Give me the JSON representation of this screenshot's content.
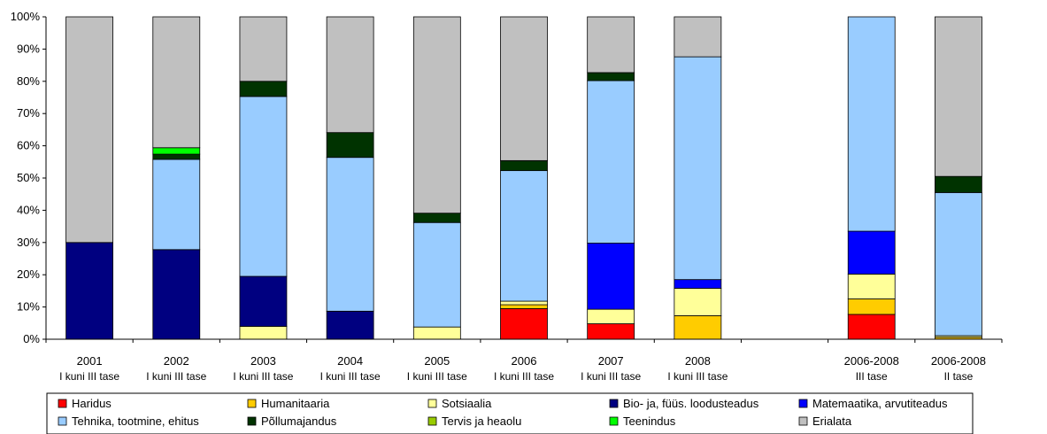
{
  "chart_data": {
    "type": "bar",
    "stacked": true,
    "percent": true,
    "ylim": [
      0,
      100
    ],
    "yticks": [
      "0%",
      "10%",
      "20%",
      "30%",
      "40%",
      "50%",
      "60%",
      "70%",
      "80%",
      "90%",
      "100%"
    ],
    "grid": false,
    "legend_position": "bottom",
    "categories": [
      {
        "line1": "2001",
        "line2": "I kuni III tase"
      },
      {
        "line1": "2002",
        "line2": "I kuni III tase"
      },
      {
        "line1": "2003",
        "line2": "I kuni III tase"
      },
      {
        "line1": "2004",
        "line2": "I kuni III tase"
      },
      {
        "line1": "2005",
        "line2": "I kuni III tase"
      },
      {
        "line1": "2006",
        "line2": "I kuni III tase"
      },
      {
        "line1": "2007",
        "line2": "I kuni III tase"
      },
      {
        "line1": "2008",
        "line2": "I kuni III tase"
      },
      {
        "line1": "",
        "line2": ""
      },
      {
        "line1": "2006-2008",
        "line2": "III tase"
      },
      {
        "line1": "2006-2008",
        "line2": "II tase"
      }
    ],
    "series": [
      {
        "name": "Haridus",
        "color": "#ff0000",
        "values": [
          0,
          0,
          0,
          0,
          0,
          9.5,
          4.8,
          0,
          null,
          7.7,
          0
        ]
      },
      {
        "name": "Humanitaaria",
        "color": "#ffcc00",
        "values": [
          0,
          0,
          0,
          0,
          0,
          1.2,
          0,
          7.3,
          null,
          4.8,
          0.6
        ]
      },
      {
        "name": "Sotsiaalia",
        "color": "#ffff99",
        "values": [
          0,
          0,
          4.0,
          0,
          3.8,
          1.1,
          4.5,
          8.5,
          null,
          7.7,
          0.5
        ]
      },
      {
        "name": "Bio- ja, füüs. loodusteadus",
        "color": "#000080",
        "values": [
          30.0,
          27.8,
          15.5,
          8.7,
          0,
          0,
          0,
          0,
          null,
          0,
          0
        ]
      },
      {
        "name": "Matemaatika, arvutiteadus",
        "color": "#0000ff",
        "values": [
          0,
          0,
          0,
          0,
          0,
          0,
          20.5,
          2.7,
          null,
          13.3,
          0
        ]
      },
      {
        "name": "Tehnika, tootmine, ehitus",
        "color": "#99ccff",
        "values": [
          0,
          28.0,
          55.8,
          47.7,
          32.4,
          40.5,
          50.4,
          69.1,
          null,
          66.5,
          44.4
        ]
      },
      {
        "name": "Põllumajandus",
        "color": "#003300",
        "values": [
          0,
          1.6,
          4.7,
          7.7,
          2.9,
          3.1,
          2.5,
          0,
          null,
          0,
          5.0
        ]
      },
      {
        "name": "Tervis ja heaolu",
        "color": "#99cc00",
        "values": [
          0,
          0,
          0,
          0,
          0,
          0,
          0,
          0,
          null,
          0,
          0
        ]
      },
      {
        "name": "Teenindus",
        "color": "#00ff00",
        "values": [
          0,
          2.0,
          0,
          0,
          0,
          0,
          0,
          0,
          null,
          0,
          0
        ]
      },
      {
        "name": "Erialata",
        "color": "#c0c0c0",
        "values": [
          70.0,
          40.6,
          20.0,
          35.9,
          60.9,
          44.6,
          17.3,
          12.4,
          null,
          0,
          49.5
        ]
      }
    ]
  }
}
